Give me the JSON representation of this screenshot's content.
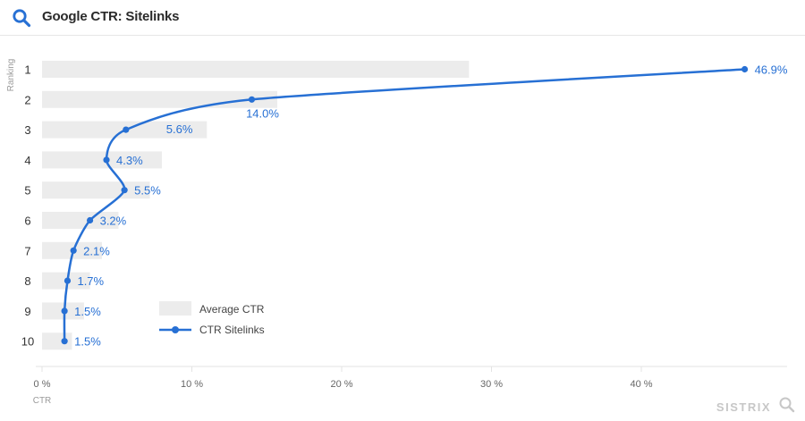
{
  "header": {
    "title": "Google CTR: Sitelinks"
  },
  "watermark": "SISTRIX",
  "chart_data": {
    "type": "bar",
    "title": "Google CTR: Sitelinks",
    "ylabel": "Ranking",
    "xlabel": "CTR",
    "categories": [
      "1",
      "2",
      "3",
      "4",
      "5",
      "6",
      "7",
      "8",
      "9",
      "10"
    ],
    "xlim": [
      0,
      50
    ],
    "xticks": [
      0,
      10,
      20,
      30,
      40
    ],
    "xtick_labels": [
      "0 %",
      "10 %",
      "20 %",
      "30 %",
      "40 %"
    ],
    "grid": false,
    "legend_position": "bottom-center",
    "series": [
      {
        "name": "Average CTR",
        "type": "bar",
        "color": "#ececec",
        "values": [
          28.5,
          15.7,
          11.0,
          8.0,
          7.2,
          5.1,
          4.0,
          3.2,
          2.8,
          2.0
        ]
      },
      {
        "name": "CTR Sitelinks",
        "type": "line",
        "color": "#2770d4",
        "values": [
          46.9,
          14.0,
          5.6,
          4.3,
          5.5,
          3.2,
          2.1,
          1.7,
          1.5,
          1.5
        ],
        "labels": [
          "46.9%",
          "14.0%",
          "5.6%",
          "4.3%",
          "5.5%",
          "3.2%",
          "2.1%",
          "1.7%",
          "1.5%",
          "1.5%"
        ]
      }
    ]
  }
}
